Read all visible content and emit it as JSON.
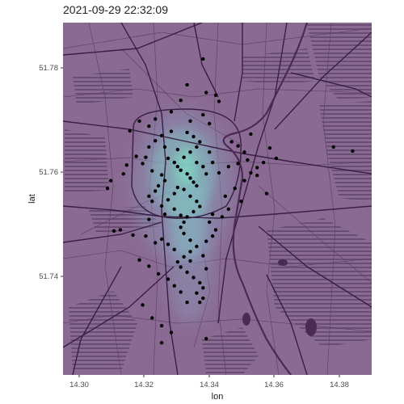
{
  "title": "2021-09-29 22:32:09",
  "axes": {
    "xlabel": "lon",
    "ylabel": "lat",
    "x_ticks": [
      "14.30",
      "14.32",
      "14.34",
      "14.36",
      "14.38"
    ],
    "y_ticks": [
      "51.78",
      "51.76",
      "51.74"
    ]
  },
  "colors": {
    "map_base": "#8a6a92",
    "streets": "#3a1f45",
    "minor_streets": "#5b3d63",
    "river": "#4b2a56",
    "density_outer": "#8aa9c6",
    "density_mid": "#7fd1c9",
    "density_core": "#7fe7c8",
    "points": "#000000",
    "tick_text": "#4d4d4d"
  },
  "chart_data": {
    "type": "scatter",
    "title": "2021-09-29 22:32:09",
    "xlabel": "lon",
    "ylabel": "lat",
    "xlim": [
      14.291,
      14.388
    ],
    "ylim": [
      51.721,
      51.789
    ],
    "overlay": "kernel density of points over base map",
    "points": [
      [
        14.328,
        51.7605
      ],
      [
        14.33,
        51.7598
      ],
      [
        14.331,
        51.759
      ],
      [
        14.332,
        51.7582
      ],
      [
        14.333,
        51.7575
      ],
      [
        14.327,
        51.7612
      ],
      [
        14.326,
        51.762
      ],
      [
        14.329,
        51.763
      ],
      [
        14.331,
        51.764
      ],
      [
        14.333,
        51.765
      ],
      [
        14.334,
        51.766
      ],
      [
        14.332,
        51.767
      ],
      [
        14.33,
        51.7678
      ],
      [
        14.325,
        51.768
      ],
      [
        14.322,
        51.7672
      ],
      [
        14.32,
        51.7662
      ],
      [
        14.318,
        51.765
      ],
      [
        14.317,
        51.763
      ],
      [
        14.316,
        51.7618
      ],
      [
        14.319,
        51.7604
      ],
      [
        14.322,
        51.7596
      ],
      [
        14.323,
        51.7585
      ],
      [
        14.321,
        51.7575
      ],
      [
        14.32,
        51.7565
      ],
      [
        14.318,
        51.7555
      ],
      [
        14.319,
        51.7545
      ],
      [
        14.322,
        51.7536
      ],
      [
        14.324,
        51.7548
      ],
      [
        14.326,
        51.756
      ],
      [
        14.327,
        51.7572
      ],
      [
        14.329,
        51.7568
      ],
      [
        14.331,
        51.7555
      ],
      [
        14.333,
        51.7545
      ],
      [
        14.334,
        51.7535
      ],
      [
        14.332,
        51.7525
      ],
      [
        14.33,
        51.7515
      ],
      [
        14.329,
        51.7505
      ],
      [
        14.328,
        51.7495
      ],
      [
        14.329,
        51.7483
      ],
      [
        14.331,
        51.747
      ],
      [
        14.333,
        51.7458
      ],
      [
        14.331,
        51.7448
      ],
      [
        14.329,
        51.7438
      ],
      [
        14.327,
        51.7428
      ],
      [
        14.328,
        51.7418
      ],
      [
        14.33,
        51.7408
      ],
      [
        14.332,
        51.7398
      ],
      [
        14.334,
        51.7388
      ],
      [
        14.335,
        51.7378
      ],
      [
        14.333,
        51.7368
      ],
      [
        14.335,
        51.7358
      ],
      [
        14.334,
        51.735
      ],
      [
        14.326,
        51.7452
      ],
      [
        14.324,
        51.7462
      ],
      [
        14.322,
        51.7472
      ],
      [
        14.336,
        51.7468
      ],
      [
        14.338,
        51.7478
      ],
      [
        14.339,
        51.749
      ],
      [
        14.337,
        51.7505
      ],
      [
        14.338,
        51.752
      ],
      [
        14.342,
        51.7555
      ],
      [
        14.345,
        51.757
      ],
      [
        14.348,
        51.7585
      ],
      [
        14.35,
        51.76
      ],
      [
        14.352,
        51.761
      ],
      [
        14.354,
        51.762
      ],
      [
        14.349,
        51.7625
      ],
      [
        14.346,
        51.7618
      ],
      [
        14.343,
        51.7612
      ],
      [
        14.348,
        51.764
      ],
      [
        14.346,
        51.7652
      ],
      [
        14.344,
        51.766
      ],
      [
        14.352,
        51.7595
      ],
      [
        14.347,
        51.7545
      ],
      [
        14.343,
        51.753
      ],
      [
        14.341,
        51.7515
      ],
      [
        14.314,
        51.7632
      ],
      [
        14.311,
        51.7615
      ],
      [
        14.31,
        51.7598
      ],
      [
        14.306,
        51.7585
      ],
      [
        14.305,
        51.757
      ],
      [
        14.309,
        51.749
      ],
      [
        14.307,
        51.7488
      ],
      [
        14.313,
        51.748
      ],
      [
        14.317,
        51.7478
      ],
      [
        14.32,
        51.7465
      ],
      [
        14.315,
        51.7432
      ],
      [
        14.318,
        51.742
      ],
      [
        14.321,
        51.7405
      ],
      [
        14.324,
        51.7395
      ],
      [
        14.326,
        51.7382
      ],
      [
        14.328,
        51.737
      ],
      [
        14.319,
        51.732
      ],
      [
        14.322,
        51.7305
      ],
      [
        14.325,
        51.7292
      ],
      [
        14.322,
        51.7272
      ],
      [
        14.336,
        51.728
      ],
      [
        14.316,
        51.7345
      ],
      [
        14.331,
        51.77
      ],
      [
        14.337,
        51.7695
      ],
      [
        14.335,
        51.7712
      ],
      [
        14.325,
        51.7718
      ],
      [
        14.335,
        51.782
      ],
      [
        14.33,
        51.777
      ],
      [
        14.336,
        51.7755
      ],
      [
        14.328,
        51.774
      ],
      [
        14.339,
        51.775
      ],
      [
        14.34,
        51.7738
      ],
      [
        14.318,
        51.769
      ],
      [
        14.32,
        51.7704
      ],
      [
        14.312,
        51.7681
      ],
      [
        14.315,
        51.77
      ],
      [
        14.35,
        51.7675
      ],
      [
        14.356,
        51.7648
      ],
      [
        14.358,
        51.7628
      ],
      [
        14.382,
        51.7642
      ],
      [
        14.376,
        51.765
      ],
      [
        14.355,
        51.756
      ],
      [
        14.34,
        51.76
      ],
      [
        14.338,
        51.762
      ],
      [
        14.337,
        51.764
      ],
      [
        14.324,
        51.7628
      ],
      [
        14.327,
        51.7645
      ],
      [
        14.323,
        51.765
      ],
      [
        14.333,
        51.762
      ],
      [
        14.335,
        51.7612
      ],
      [
        14.336,
        51.7598
      ],
      [
        14.328,
        51.7518
      ],
      [
        14.326,
        51.753
      ],
      [
        14.323,
        51.752
      ],
      [
        14.318,
        51.751
      ],
      [
        14.33,
        51.735
      ],
      [
        14.331,
        51.743
      ],
      [
        14.335,
        51.744
      ],
      [
        14.336,
        51.7415
      ]
    ]
  }
}
